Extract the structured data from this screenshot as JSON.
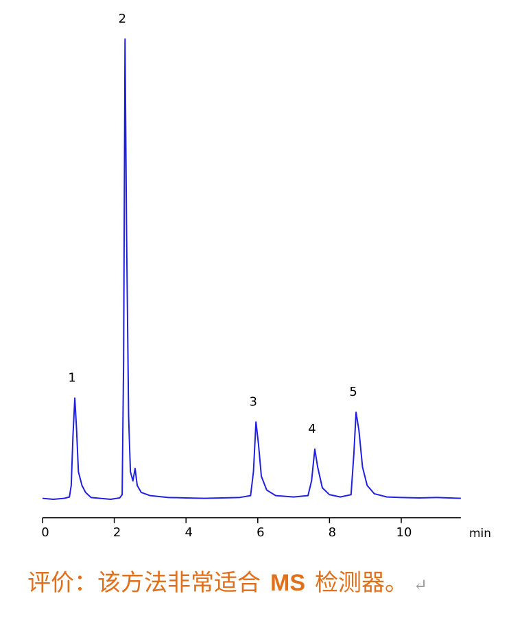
{
  "chart_data": {
    "type": "line",
    "xlabel": "min",
    "peak_labels": [
      "1",
      "2",
      "3",
      "4",
      "5"
    ],
    "color": "#2020e0",
    "x": [
      0,
      0.3,
      0.6,
      0.75,
      0.8,
      0.85,
      0.9,
      0.95,
      1.0,
      1.1,
      1.2,
      1.35,
      1.6,
      1.9,
      2.15,
      2.22,
      2.26,
      2.3,
      2.34,
      2.4,
      2.45,
      2.52,
      2.58,
      2.64,
      2.75,
      3.0,
      3.5,
      4.0,
      4.5,
      5.0,
      5.5,
      5.8,
      5.88,
      5.95,
      6.02,
      6.1,
      6.25,
      6.5,
      7.0,
      7.4,
      7.5,
      7.59,
      7.67,
      7.8,
      8.0,
      8.3,
      8.6,
      8.68,
      8.74,
      8.82,
      8.92,
      9.05,
      9.25,
      9.6,
      10.0,
      10.5,
      11.0,
      11.66
    ],
    "values": [
      0.2,
      0,
      0.2,
      0.5,
      3,
      14,
      22,
      15,
      6,
      3,
      1.5,
      0.4,
      0.2,
      0,
      0.3,
      1,
      30,
      100,
      60,
      18,
      6,
      4,
      6.7,
      3,
      1.5,
      0.8,
      0.4,
      0.3,
      0.2,
      0.3,
      0.4,
      0.8,
      6,
      16.8,
      12,
      5,
      2,
      0.8,
      0.5,
      0.8,
      4,
      10.9,
      7,
      2.5,
      1,
      0.5,
      1,
      10,
      18.9,
      15,
      7,
      3,
      1.2,
      0.5,
      0.4,
      0.3,
      0.4,
      0.2
    ],
    "xlim": [
      0,
      11.66
    ],
    "xticks": [
      0,
      2,
      4,
      6,
      8,
      10
    ],
    "ylim": [
      -4,
      100
    ]
  },
  "caption": [
    "评价：该方法非常适合",
    "MS",
    "检测器。",
    "↵"
  ]
}
